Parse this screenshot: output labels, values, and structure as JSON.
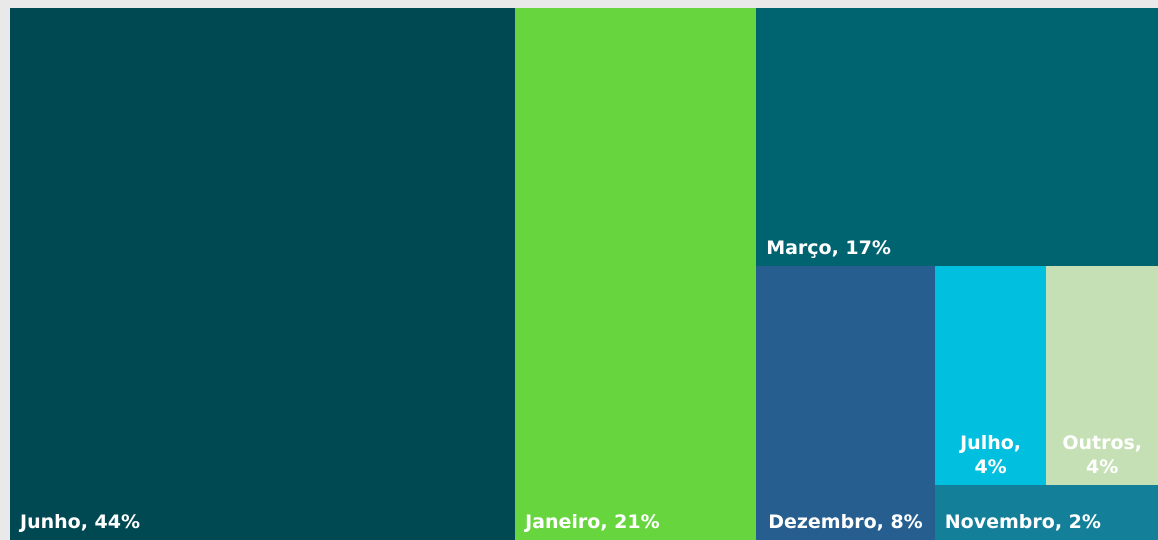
{
  "chart_data": {
    "type": "treemap",
    "categories": [
      "Junho",
      "Janeiro",
      "Março",
      "Dezembro",
      "Julho",
      "Outros",
      "Novembro"
    ],
    "values": [
      44,
      21,
      17,
      8,
      4,
      4,
      2
    ],
    "value_labels": [
      "Junho, 44%",
      "Janeiro, 21%",
      "Março, 17%",
      "Dezembro, 8%",
      "Julho, 4%",
      "Outros, 4%",
      "Novembro, 2%"
    ],
    "colors": [
      "#004852",
      "#67d63e",
      "#006470",
      "#255e8f",
      "#00bfdf",
      "#c5e0b4",
      "#147f99"
    ]
  }
}
